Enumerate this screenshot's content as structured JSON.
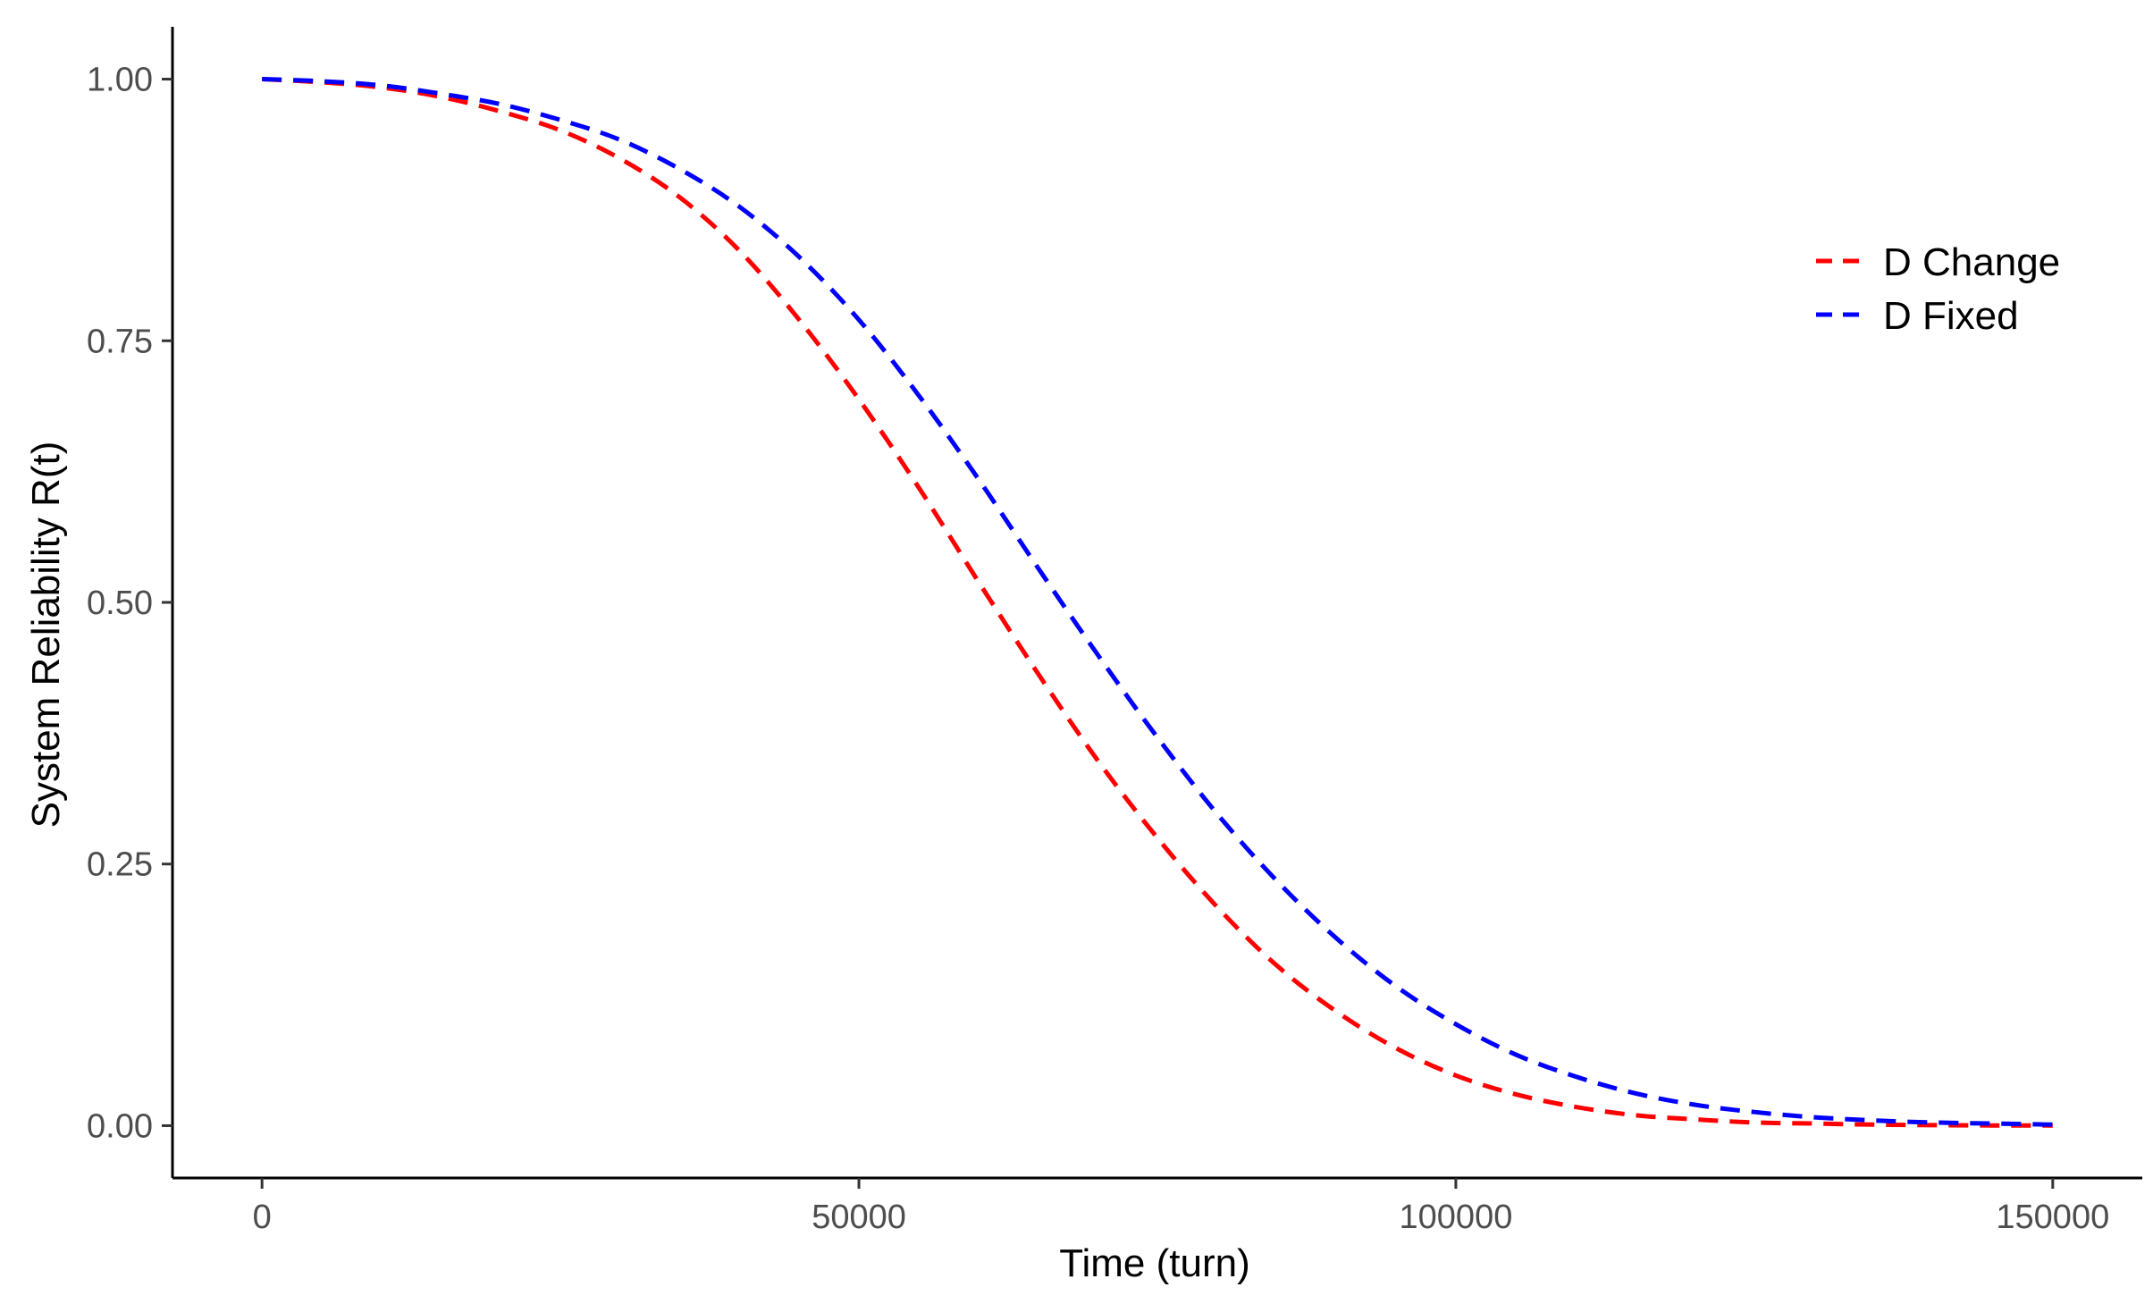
{
  "chart_data": {
    "type": "line",
    "title": "",
    "xlabel": "Time (turn)",
    "ylabel": "System Reliability R(t)",
    "xlim": [
      -7500,
      157500
    ],
    "ylim": [
      -0.05,
      1.05
    ],
    "x_ticks": [
      0,
      50000,
      100000,
      150000
    ],
    "x_tick_labels": [
      "0",
      "50000",
      "100000",
      "150000"
    ],
    "y_ticks": [
      0,
      0.25,
      0.5,
      0.75,
      1.0
    ],
    "y_tick_labels": [
      "0.00",
      "0.25",
      "0.50",
      "0.75",
      "1.00"
    ],
    "grid": false,
    "legend_position": "right-top",
    "x": [
      0,
      5000,
      10000,
      15000,
      20000,
      25000,
      30000,
      35000,
      40000,
      45000,
      50000,
      55000,
      60000,
      65000,
      70000,
      75000,
      80000,
      85000,
      90000,
      95000,
      100000,
      105000,
      110000,
      115000,
      120000,
      125000,
      130000,
      135000,
      140000,
      145000,
      150000
    ],
    "series": [
      {
        "name": "D Change",
        "color": "#ff0000",
        "values": [
          1.0,
          0.997,
          0.992,
          0.983,
          0.969,
          0.951,
          0.924,
          0.887,
          0.836,
          0.77,
          0.694,
          0.61,
          0.52,
          0.432,
          0.349,
          0.275,
          0.209,
          0.153,
          0.109,
          0.074,
          0.048,
          0.03,
          0.018,
          0.01,
          0.006,
          0.003,
          0.002,
          0.001,
          0.0005,
          0.0002,
          0.0001
        ]
      },
      {
        "name": "D Fixed",
        "color": "#0000ff",
        "values": [
          1.0,
          0.998,
          0.994,
          0.986,
          0.976,
          0.961,
          0.942,
          0.914,
          0.878,
          0.83,
          0.77,
          0.698,
          0.618,
          0.533,
          0.45,
          0.371,
          0.298,
          0.234,
          0.179,
          0.133,
          0.097,
          0.068,
          0.047,
          0.031,
          0.02,
          0.013,
          0.008,
          0.005,
          0.003,
          0.002,
          0.001
        ]
      }
    ]
  }
}
